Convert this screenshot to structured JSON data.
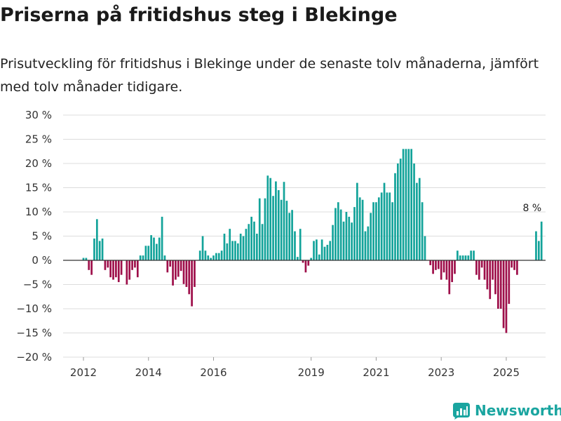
{
  "title": "Priserna på fritidshus steg i Blekinge",
  "subtitle": "Prisutveckling för fritidshus i Blekinge under de senaste tolv månaderna, jämfört med tolv månader tidigare.",
  "brand": {
    "name": "Newsworthy",
    "icon": "newsworthy-logo-icon"
  },
  "colors": {
    "positive": "#13a39a",
    "negative": "#9e0f4a",
    "grid": "#dcdcdc",
    "zero": "#333333",
    "brand": "#1aa5a0"
  },
  "chart_data": {
    "type": "bar",
    "title": "Priserna på fritidshus steg i Blekinge",
    "xlabel": "",
    "ylabel": "",
    "ylim": [
      -20,
      30
    ],
    "yticks": [
      30,
      25,
      20,
      15,
      10,
      5,
      0,
      -5,
      -10,
      -15,
      -20
    ],
    "ytick_labels": [
      "30 %",
      "25 %",
      "20 %",
      "15 %",
      "10 %",
      "5 %",
      "0 %",
      "−5 %",
      "−10 %",
      "−15 %",
      "−20 %"
    ],
    "xticks": [
      2012,
      2014,
      2016,
      2019,
      2021,
      2023,
      2025
    ],
    "xtick_labels": [
      "2012",
      "2014",
      "2016",
      "2019",
      "2021",
      "2023",
      "2025"
    ],
    "start_month": "2012-01",
    "values": [
      0.5,
      0.5,
      -2,
      -3,
      4.5,
      8.5,
      4,
      4.5,
      -2,
      -1.5,
      -3.5,
      -4,
      -3.5,
      -4.5,
      -3,
      0,
      -5,
      -4,
      -2,
      -1.5,
      -3.5,
      1,
      1,
      3,
      3,
      5.2,
      4.7,
      3.4,
      4.7,
      9,
      1,
      -2.5,
      -1.3,
      -5.2,
      -4,
      -3.4,
      -2.2,
      -4.9,
      -5.5,
      -7,
      -9.5,
      -5.5,
      0,
      2,
      5,
      2,
      1,
      0.5,
      1,
      1.5,
      1.5,
      2,
      5.5,
      3.5,
      6.5,
      4,
      4,
      3.5,
      5.5,
      5,
      6.5,
      7.5,
      9,
      8,
      5.5,
      12.8,
      7.5,
      12.8,
      17.5,
      17,
      13.3,
      16.3,
      14.5,
      12.5,
      16.2,
      12.3,
      9.8,
      10.4,
      6,
      0.7,
      6.5,
      -0.5,
      -2.5,
      -1.1,
      0.5,
      4,
      4.3,
      1.2,
      4.3,
      2.8,
      3.2,
      4,
      7.3,
      10.8,
      12,
      10.5,
      8,
      10,
      9,
      7.8,
      11,
      16,
      13,
      12.5,
      6,
      7,
      9.8,
      12,
      12,
      13,
      14,
      16,
      14,
      14,
      12,
      18,
      20,
      21,
      23,
      23,
      23,
      23,
      20,
      16,
      17,
      12,
      5,
      0,
      -1,
      -2.8,
      -2,
      -1.8,
      -4,
      -2.5,
      -4,
      -7,
      -4.5,
      -2.8,
      2,
      1,
      1,
      1,
      1,
      2,
      2,
      -3,
      -4,
      -1.5,
      -4,
      -6,
      -8,
      -4,
      -7,
      -10,
      -10,
      -14,
      -15,
      -9,
      -1.5,
      -2,
      -3,
      0,
      0,
      0,
      0,
      0,
      0,
      6,
      4,
      8
    ],
    "annotations": [
      {
        "label": "8 %",
        "target": "last"
      }
    ]
  }
}
